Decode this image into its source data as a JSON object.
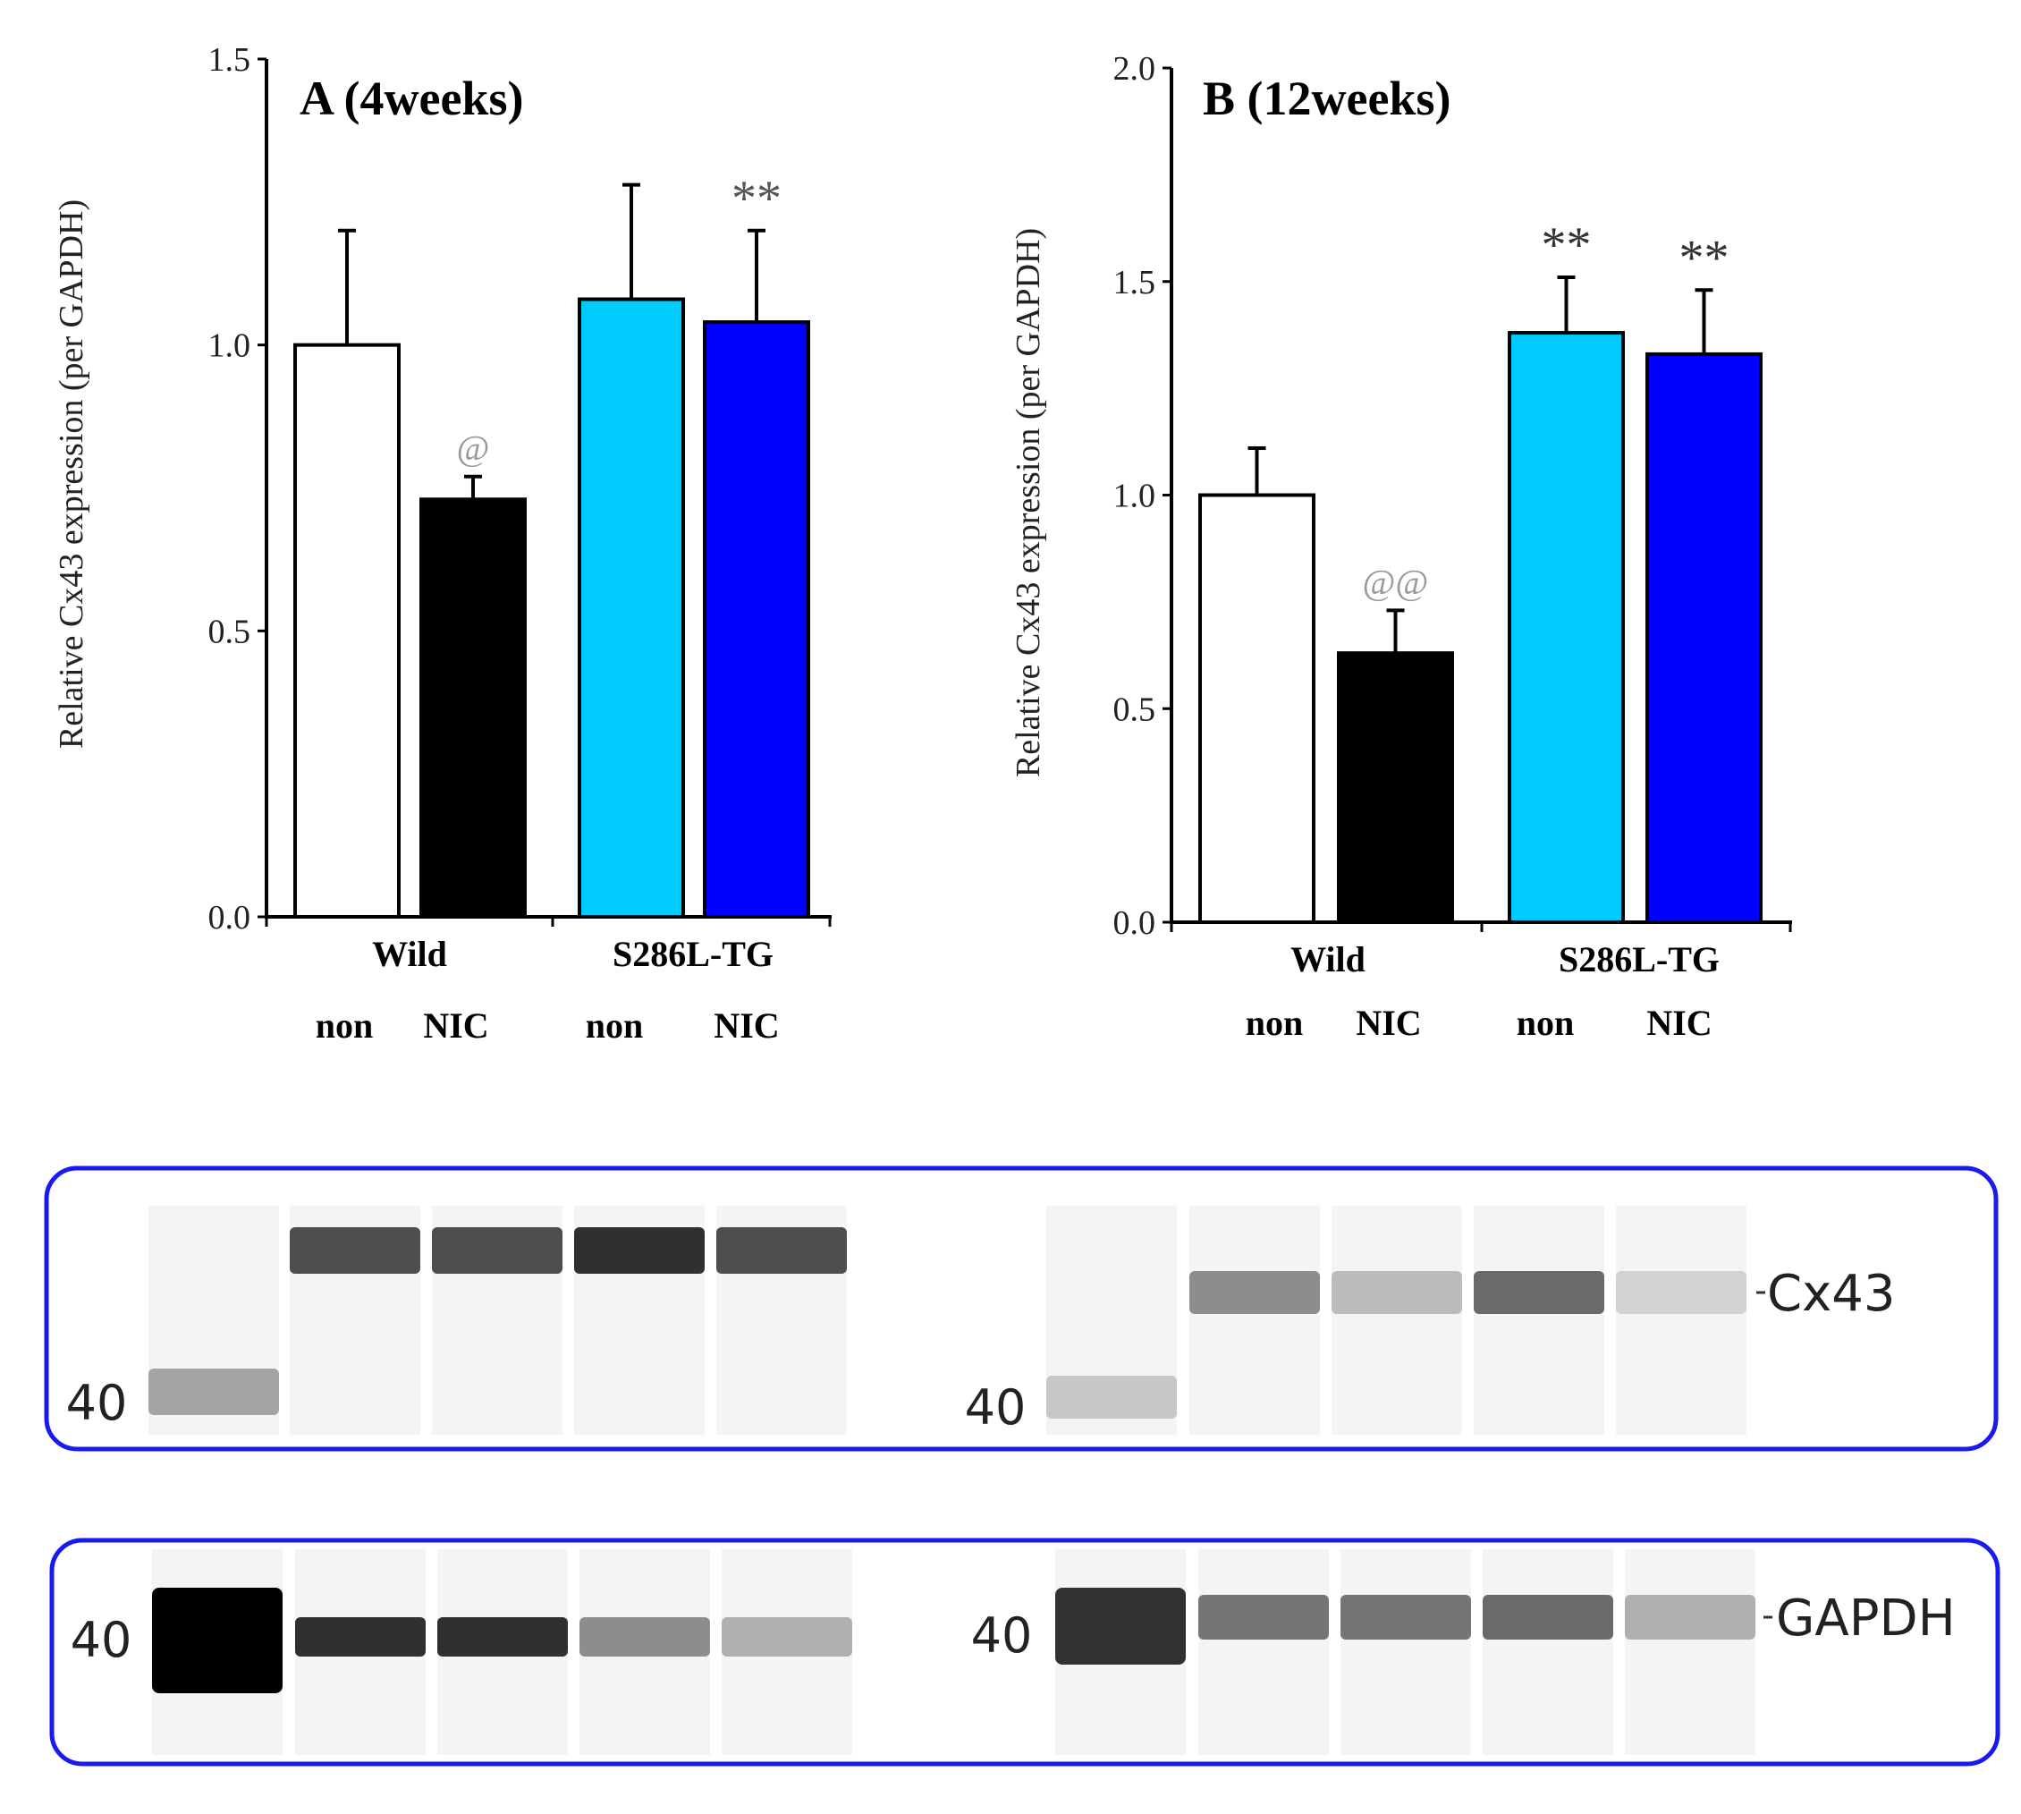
{
  "chart_data": [
    {
      "type": "bar",
      "title": "A (4weeks)",
      "ylabel": "Relative Cx43 expression (per GAPDH)",
      "xlabel": "",
      "ylim": [
        0,
        1.5
      ],
      "yticks": [
        "0.0",
        "0.5",
        "1.0",
        "1.5"
      ],
      "groups": [
        "Wild",
        "S286L-TG"
      ],
      "categories": [
        "non",
        "NIC",
        "non",
        "NIC"
      ],
      "values": [
        1.0,
        0.73,
        1.08,
        1.04
      ],
      "errors": [
        0.2,
        0.04,
        0.2,
        0.16
      ],
      "colors": [
        "#ffffff",
        "#000000",
        "#00ccff",
        "#0000ff"
      ],
      "annotations": [
        "",
        "@",
        "",
        "**"
      ],
      "annotation_colors": [
        "#000000",
        "#999999",
        "#000000",
        "#555555"
      ],
      "grid": false
    },
    {
      "type": "bar",
      "title": "B (12weeks)",
      "ylabel": "Relative Cx43 expression (per GAPDH)",
      "xlabel": "",
      "ylim": [
        0,
        2.0
      ],
      "yticks": [
        "0.0",
        "0.5",
        "1.0",
        "1.5",
        "2.0"
      ],
      "groups": [
        "Wild",
        "S286L-TG"
      ],
      "categories": [
        "non",
        "NIC",
        "non",
        "NIC"
      ],
      "values": [
        1.0,
        0.63,
        1.38,
        1.33
      ],
      "errors": [
        0.11,
        0.1,
        0.13,
        0.15
      ],
      "colors": [
        "#ffffff",
        "#000000",
        "#00ccff",
        "#0000ff"
      ],
      "annotations": [
        "",
        "@@",
        "**",
        "**"
      ],
      "annotation_colors": [
        "#000000",
        "#999999",
        "#333333",
        "#333333"
      ],
      "grid": false
    }
  ],
  "blots": {
    "frame_color": "#1a1aee",
    "marker_label": "40",
    "cx43_label": "Cx43",
    "gapdh_label": "GAPDH",
    "cx43_left": [
      0.35,
      0.72,
      0.72,
      0.85,
      0.72
    ],
    "cx43_right": [
      0.2,
      0.45,
      0.25,
      0.6,
      0.15
    ],
    "gapdh_left": [
      1.0,
      0.85,
      0.85,
      0.45,
      0.3
    ],
    "gapdh_right": [
      0.8,
      0.55,
      0.55,
      0.6,
      0.3
    ]
  }
}
